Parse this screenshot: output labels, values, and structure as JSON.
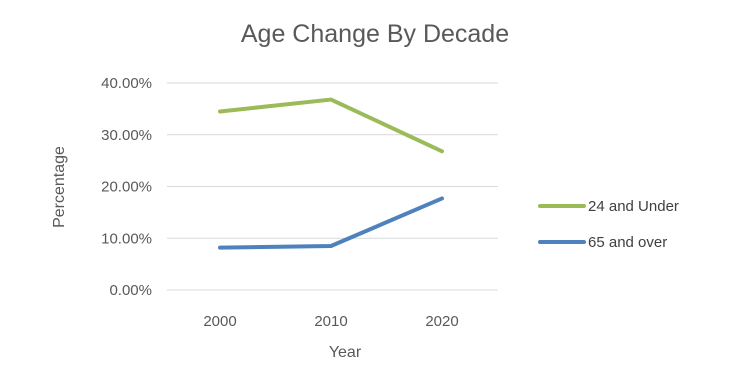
{
  "chart_data": {
    "type": "line",
    "title": "Age Change By Decade",
    "xlabel": "Year",
    "ylabel": "Percentage",
    "categories": [
      "2000",
      "2010",
      "2020"
    ],
    "ylim": [
      0,
      0.4
    ],
    "yticks": [
      0,
      0.1,
      0.2,
      0.3,
      0.4
    ],
    "ytick_labels": [
      "0.00%",
      "10.00%",
      "20.00%",
      "30.00%",
      "40.00%"
    ],
    "grid": true,
    "legend_position": "right",
    "series": [
      {
        "name": "24 and Under",
        "color": "#9BBB59",
        "values": [
          0.345,
          0.368,
          0.268
        ]
      },
      {
        "name": "65 and over",
        "color": "#4F81BD",
        "values": [
          0.082,
          0.085,
          0.177
        ]
      }
    ]
  }
}
